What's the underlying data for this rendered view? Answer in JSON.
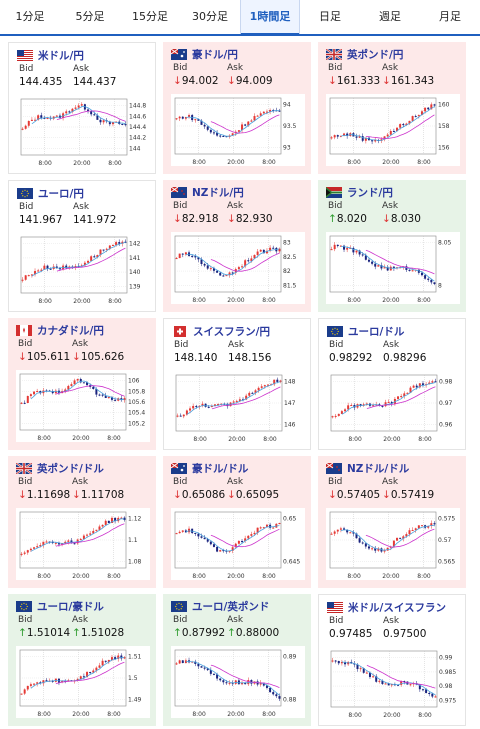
{
  "tabs": [
    {
      "label": "1分足",
      "active": false
    },
    {
      "label": "5分足",
      "active": false
    },
    {
      "label": "15分足",
      "active": false
    },
    {
      "label": "30分足",
      "active": false
    },
    {
      "label": "1時間足",
      "active": true
    },
    {
      "label": "日足",
      "active": false
    },
    {
      "label": "週足",
      "active": false
    },
    {
      "label": "月足",
      "active": false
    }
  ],
  "labels": {
    "bid": "Bid",
    "ask": "Ask"
  },
  "colors": {
    "accent": "#1f5fbf",
    "down_bg": "#fde9e9",
    "up_bg": "#e7f3e7",
    "candle_up": "#e53935",
    "candle_down": "#1a237e",
    "ma_short": "#4aa3df",
    "ma_long": "#cc33cc"
  },
  "cards": [
    {
      "pair": "米ドル/円",
      "flag": "us",
      "state": "neutral",
      "bid": "144.435",
      "ask": "144.437",
      "bid_dir": "",
      "ask_dir": "",
      "chart": {
        "yticks": [
          "144.8",
          "144.6",
          "144.4",
          "144.2",
          "144"
        ],
        "xticks": [
          "8:00",
          "20:00",
          "8:00"
        ],
        "trend": "peak-mid"
      }
    },
    {
      "pair": "豪ドル/円",
      "flag": "au",
      "state": "down",
      "bid": "94.002",
      "ask": "94.009",
      "bid_dir": "down",
      "ask_dir": "down",
      "chart": {
        "yticks": [
          "94",
          "93.5",
          "93"
        ],
        "xticks": [
          "8:00",
          "20:00",
          "8:00"
        ],
        "trend": "dip-recover"
      }
    },
    {
      "pair": "英ポンド/円",
      "flag": "gb",
      "state": "down",
      "bid": "161.333",
      "ask": "161.343",
      "bid_dir": "down",
      "ask_dir": "down",
      "chart": {
        "yticks": [
          "160",
          "158",
          "156"
        ],
        "xticks": [
          "8:00",
          "20:00",
          "8:00"
        ],
        "trend": "rise-late"
      }
    },
    {
      "pair": "ユーロ/円",
      "flag": "eu",
      "state": "neutral",
      "bid": "141.967",
      "ask": "141.972",
      "bid_dir": "",
      "ask_dir": "",
      "chart": {
        "yticks": [
          "142",
          "141",
          "140",
          "139"
        ],
        "xticks": [
          "8:00",
          "20:00",
          "8:00"
        ],
        "trend": "rise"
      }
    },
    {
      "pair": "NZドル/円",
      "flag": "nz",
      "state": "down",
      "bid": "82.918",
      "ask": "82.930",
      "bid_dir": "down",
      "ask_dir": "down",
      "chart": {
        "yticks": [
          "83",
          "82.5",
          "82",
          "81.5"
        ],
        "xticks": [
          "8:00",
          "20:00",
          "8:00"
        ],
        "trend": "dip-recover"
      }
    },
    {
      "pair": "ランド/円",
      "flag": "za",
      "state": "up",
      "bid": "8.020",
      "ask": "8.030",
      "bid_dir": "up",
      "ask_dir": "down",
      "chart": {
        "yticks": [
          "8.05",
          "8"
        ],
        "xticks": [
          "8:00",
          "20:00",
          "8:00"
        ],
        "trend": "fall"
      }
    },
    {
      "pair": "カナダドル/円",
      "flag": "ca",
      "state": "down",
      "bid": "105.611",
      "ask": "105.626",
      "bid_dir": "down",
      "ask_dir": "down",
      "chart": {
        "yticks": [
          "106",
          "105.8",
          "105.6",
          "105.4",
          "105.2"
        ],
        "xticks": [
          "8:00",
          "20:00",
          "8:00"
        ],
        "trend": "peak-mid"
      }
    },
    {
      "pair": "スイスフラン/円",
      "flag": "ch",
      "state": "neutral",
      "bid": "148.140",
      "ask": "148.156",
      "bid_dir": "",
      "ask_dir": "",
      "chart": {
        "yticks": [
          "148",
          "147",
          "146"
        ],
        "xticks": [
          "8:00",
          "20:00",
          "8:00"
        ],
        "trend": "rise"
      }
    },
    {
      "pair": "ユーロ/ドル",
      "flag": "eu",
      "state": "neutral",
      "bid": "0.98292",
      "ask": "0.98296",
      "bid_dir": "",
      "ask_dir": "",
      "chart": {
        "yticks": [
          "0.98",
          "0.97",
          "0.96"
        ],
        "xticks": [
          "8:00",
          "20:00",
          "8:00"
        ],
        "trend": "rise"
      }
    },
    {
      "pair": "英ポンド/ドル",
      "flag": "gb",
      "state": "down",
      "bid": "1.11698",
      "ask": "1.11708",
      "bid_dir": "down",
      "ask_dir": "down",
      "chart": {
        "yticks": [
          "1.12",
          "1.1",
          "1.08"
        ],
        "xticks": [
          "8:00",
          "20:00",
          "8:00"
        ],
        "trend": "rise"
      }
    },
    {
      "pair": "豪ドル/ドル",
      "flag": "au",
      "state": "down",
      "bid": "0.65086",
      "ask": "0.65095",
      "bid_dir": "down",
      "ask_dir": "down",
      "chart": {
        "yticks": [
          "0.65",
          "0.645"
        ],
        "xticks": [
          "8:00",
          "20:00",
          "8:00"
        ],
        "trend": "dip-recover"
      }
    },
    {
      "pair": "NZドル/ドル",
      "flag": "nz",
      "state": "down",
      "bid": "0.57405",
      "ask": "0.57419",
      "bid_dir": "down",
      "ask_dir": "down",
      "chart": {
        "yticks": [
          "0.575",
          "0.57",
          "0.565"
        ],
        "xticks": [
          "8:00",
          "20:00",
          "8:00"
        ],
        "trend": "dip-recover"
      }
    },
    {
      "pair": "ユーロ/豪ドル",
      "flag": "eu",
      "state": "up",
      "bid": "1.51014",
      "ask": "1.51028",
      "bid_dir": "up",
      "ask_dir": "up",
      "chart": {
        "yticks": [
          "1.51",
          "1.5",
          "1.49"
        ],
        "xticks": [
          "8:00",
          "20:00",
          "8:00"
        ],
        "trend": "rise"
      }
    },
    {
      "pair": "ユーロ/英ポンド",
      "flag": "eu",
      "state": "up",
      "bid": "0.87992",
      "ask": "0.88000",
      "bid_dir": "up",
      "ask_dir": "up",
      "chart": {
        "yticks": [
          "0.89",
          "0.88"
        ],
        "xticks": [
          "8:00",
          "20:00",
          "8:00"
        ],
        "trend": "fall"
      }
    },
    {
      "pair": "米ドル/スイスフラン",
      "flag": "us",
      "state": "neutral",
      "bid": "0.97485",
      "ask": "0.97500",
      "bid_dir": "",
      "ask_dir": "",
      "chart": {
        "yticks": [
          "0.99",
          "0.985",
          "0.98",
          "0.975"
        ],
        "xticks": [
          "8:00",
          "20:00",
          "8:00"
        ],
        "trend": "fall"
      }
    }
  ]
}
